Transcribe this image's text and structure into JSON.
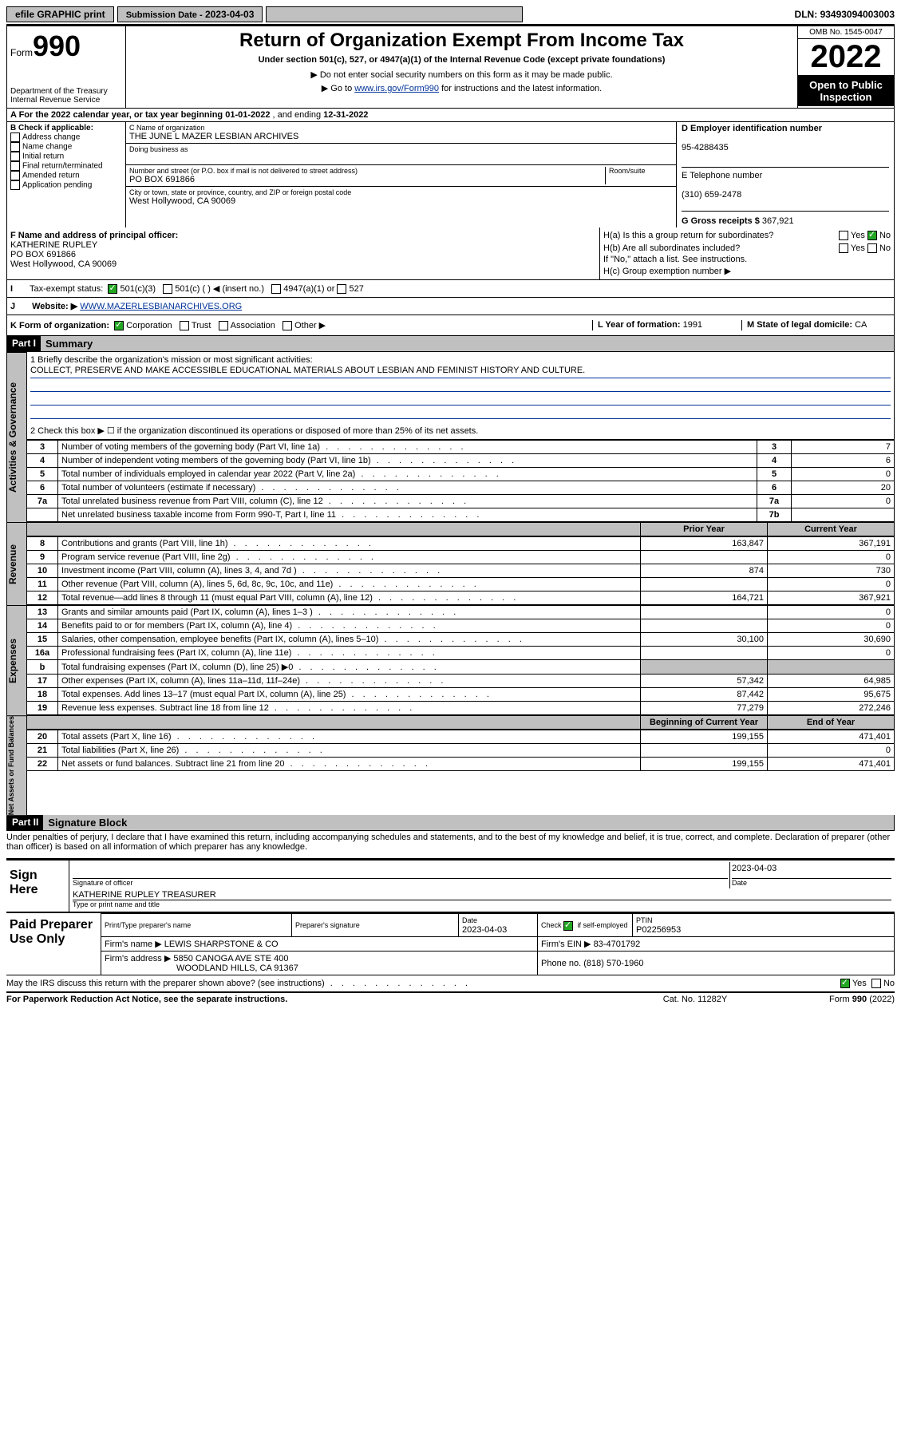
{
  "top": {
    "efile": "efile GRAPHIC print",
    "subdate_lbl": "Submission Date -",
    "subdate": "2023-04-03",
    "dln_lbl": "DLN:",
    "dln": "93493094003003"
  },
  "header": {
    "form_prefix": "Form",
    "form_num": "990",
    "dept": "Department of the Treasury",
    "irs": "Internal Revenue Service",
    "title": "Return of Organization Exempt From Income Tax",
    "sub1": "Under section 501(c), 527, or 4947(a)(1) of the Internal Revenue Code (except private foundations)",
    "sub2": "▶ Do not enter social security numbers on this form as it may be made public.",
    "sub3_pre": "▶ Go to ",
    "sub3_link": "www.irs.gov/Form990",
    "sub3_post": " for instructions and the latest information.",
    "omb": "OMB No. 1545-0047",
    "year": "2022",
    "open": "Open to Public Inspection"
  },
  "a": {
    "text_pre": "A For the 2022 calendar year, or tax year beginning ",
    "begin": "01-01-2022",
    "mid": " , and ending ",
    "end": "12-31-2022"
  },
  "b": {
    "lbl": "B Check if applicable:",
    "items": [
      "Address change",
      "Name change",
      "Initial return",
      "Final return/terminated",
      "Amended return",
      "Application pending"
    ]
  },
  "c": {
    "name_lbl": "C Name of organization",
    "name": "THE JUNE L MAZER LESBIAN ARCHIVES",
    "dba_lbl": "Doing business as",
    "addr_lbl": "Number and street (or P.O. box if mail is not delivered to street address)",
    "room_lbl": "Room/suite",
    "addr": "PO BOX 691866",
    "city_lbl": "City or town, state or province, country, and ZIP or foreign postal code",
    "city": "West Hollywood, CA  90069"
  },
  "d": {
    "lbl": "D Employer identification number",
    "val": "95-4288435"
  },
  "e": {
    "lbl": "E Telephone number",
    "val": "(310) 659-2478"
  },
  "g": {
    "lbl": "G Gross receipts $",
    "val": "367,921"
  },
  "f": {
    "lbl": "F Name and address of principal officer:",
    "name": "KATHERINE RUPLEY",
    "addr1": "PO BOX 691866",
    "addr2": "West Hollywood, CA  90069"
  },
  "h": {
    "ha": "H(a)  Is this a group return for subordinates?",
    "hb": "H(b)  Are all subordinates included?",
    "hnote": "If \"No,\" attach a list. See instructions.",
    "hc": "H(c)  Group exemption number ▶",
    "yes": "Yes",
    "no": "No"
  },
  "i": {
    "lbl": "Tax-exempt status:",
    "o1": "501(c)(3)",
    "o2": "501(c) (  ) ◀ (insert no.)",
    "o3": "4947(a)(1) or",
    "o4": "527"
  },
  "j": {
    "lbl": "Website: ▶",
    "val": "WWW.MAZERLESBIANARCHIVES.ORG"
  },
  "k": {
    "lbl": "K Form of organization:",
    "opts": [
      "Corporation",
      "Trust",
      "Association",
      "Other ▶"
    ]
  },
  "l": {
    "lbl": "L Year of formation:",
    "val": "1991"
  },
  "m": {
    "lbl": "M State of legal domicile:",
    "val": "CA"
  },
  "part1": {
    "num": "Part I",
    "title": "Summary"
  },
  "side": {
    "ag": "Activities & Governance",
    "rev": "Revenue",
    "exp": "Expenses",
    "na": "Net Assets or Fund Balances"
  },
  "summary": {
    "l1": "1   Briefly describe the organization's mission or most significant activities:",
    "mission": "COLLECT, PRESERVE AND MAKE ACCESSIBLE EDUCATIONAL MATERIALS ABOUT LESBIAN AND FEMINIST HISTORY AND CULTURE.",
    "l2": "2   Check this box ▶ ☐  if the organization discontinued its operations or disposed of more than 25% of its net assets.",
    "rows_top": [
      {
        "n": "3",
        "t": "Number of voting members of the governing body (Part VI, line 1a)",
        "b": "3",
        "v": "7"
      },
      {
        "n": "4",
        "t": "Number of independent voting members of the governing body (Part VI, line 1b)",
        "b": "4",
        "v": "6"
      },
      {
        "n": "5",
        "t": "Total number of individuals employed in calendar year 2022 (Part V, line 2a)",
        "b": "5",
        "v": "0"
      },
      {
        "n": "6",
        "t": "Total number of volunteers (estimate if necessary)",
        "b": "6",
        "v": "20"
      },
      {
        "n": "7a",
        "t": "Total unrelated business revenue from Part VIII, column (C), line 12",
        "b": "7a",
        "v": "0"
      },
      {
        "n": "",
        "t": "Net unrelated business taxable income from Form 990-T, Part I, line 11",
        "b": "7b",
        "v": ""
      }
    ],
    "col_prior": "Prior Year",
    "col_curr": "Current Year",
    "rows_fin": [
      {
        "n": "8",
        "t": "Contributions and grants (Part VIII, line 1h)",
        "p": "163,847",
        "c": "367,191"
      },
      {
        "n": "9",
        "t": "Program service revenue (Part VIII, line 2g)",
        "p": "",
        "c": "0"
      },
      {
        "n": "10",
        "t": "Investment income (Part VIII, column (A), lines 3, 4, and 7d )",
        "p": "874",
        "c": "730"
      },
      {
        "n": "11",
        "t": "Other revenue (Part VIII, column (A), lines 5, 6d, 8c, 9c, 10c, and 11e)",
        "p": "",
        "c": "0"
      },
      {
        "n": "12",
        "t": "Total revenue—add lines 8 through 11 (must equal Part VIII, column (A), line 12)",
        "p": "164,721",
        "c": "367,921"
      },
      {
        "n": "13",
        "t": "Grants and similar amounts paid (Part IX, column (A), lines 1–3 )",
        "p": "",
        "c": "0"
      },
      {
        "n": "14",
        "t": "Benefits paid to or for members (Part IX, column (A), line 4)",
        "p": "",
        "c": "0"
      },
      {
        "n": "15",
        "t": "Salaries, other compensation, employee benefits (Part IX, column (A), lines 5–10)",
        "p": "30,100",
        "c": "30,690"
      },
      {
        "n": "16a",
        "t": "Professional fundraising fees (Part IX, column (A), line 11e)",
        "p": "",
        "c": "0"
      },
      {
        "n": "b",
        "t": "Total fundraising expenses (Part IX, column (D), line 25) ▶0",
        "p": "__gray__",
        "c": "__gray__"
      },
      {
        "n": "17",
        "t": "Other expenses (Part IX, column (A), lines 11a–11d, 11f–24e)",
        "p": "57,342",
        "c": "64,985"
      },
      {
        "n": "18",
        "t": "Total expenses. Add lines 13–17 (must equal Part IX, column (A), line 25)",
        "p": "87,442",
        "c": "95,675"
      },
      {
        "n": "19",
        "t": "Revenue less expenses. Subtract line 18 from line 12",
        "p": "77,279",
        "c": "272,246"
      }
    ],
    "col_boy": "Beginning of Current Year",
    "col_eoy": "End of Year",
    "rows_na": [
      {
        "n": "20",
        "t": "Total assets (Part X, line 16)",
        "p": "199,155",
        "c": "471,401"
      },
      {
        "n": "21",
        "t": "Total liabilities (Part X, line 26)",
        "p": "",
        "c": "0"
      },
      {
        "n": "22",
        "t": "Net assets or fund balances. Subtract line 21 from line 20",
        "p": "199,155",
        "c": "471,401"
      }
    ]
  },
  "part2": {
    "num": "Part II",
    "title": "Signature Block"
  },
  "decl": "Under penalties of perjury, I declare that I have examined this return, including accompanying schedules and statements, and to the best of my knowledge and belief, it is true, correct, and complete. Declaration of preparer (other than officer) is based on all information of which preparer has any knowledge.",
  "sign": {
    "here": "Sign Here",
    "sig_of": "Signature of officer",
    "date_lbl": "Date",
    "date": "2023-04-03",
    "name": "KATHERINE RUPLEY TREASURER",
    "type_lbl": "Type or print name and title"
  },
  "paid": {
    "lbl": "Paid Preparer Use Only",
    "h1": "Print/Type preparer's name",
    "h2": "Preparer's signature",
    "h3": "Date",
    "date": "2023-04-03",
    "h4": "Check ☑ if self-employed",
    "h5": "PTIN",
    "ptin": "P02256953",
    "firm_lbl": "Firm's name    ▶",
    "firm": "LEWIS SHARPSTONE & CO",
    "ein_lbl": "Firm's EIN ▶",
    "ein": "83-4701792",
    "addr_lbl": "Firm's address ▶",
    "addr1": "5850 CANOGA AVE STE 400",
    "addr2": "WOODLAND HILLS, CA  91367",
    "phone_lbl": "Phone no.",
    "phone": "(818) 570-1960"
  },
  "discuss": {
    "q": "May the IRS discuss this return with the preparer shown above? (see instructions)",
    "yes": "Yes",
    "no": "No"
  },
  "footer": {
    "pra": "For Paperwork Reduction Act Notice, see the separate instructions.",
    "cat": "Cat. No. 11282Y",
    "form": "Form 990 (2022)"
  }
}
